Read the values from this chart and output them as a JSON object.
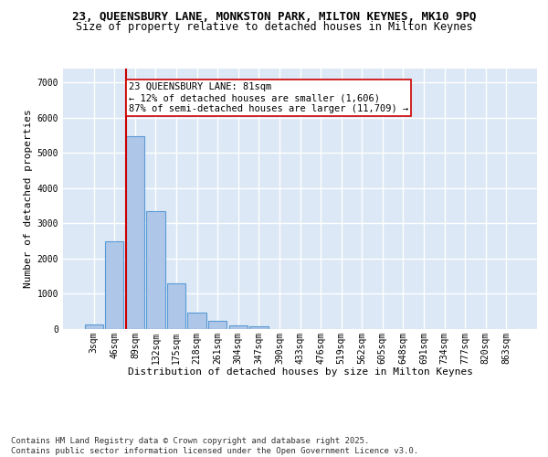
{
  "title1": "23, QUEENSBURY LANE, MONKSTON PARK, MILTON KEYNES, MK10 9PQ",
  "title2": "Size of property relative to detached houses in Milton Keynes",
  "xlabel": "Distribution of detached houses by size in Milton Keynes",
  "ylabel": "Number of detached properties",
  "bin_labels": [
    "3sqm",
    "46sqm",
    "89sqm",
    "132sqm",
    "175sqm",
    "218sqm",
    "261sqm",
    "304sqm",
    "347sqm",
    "390sqm",
    "433sqm",
    "476sqm",
    "519sqm",
    "562sqm",
    "605sqm",
    "648sqm",
    "691sqm",
    "734sqm",
    "777sqm",
    "820sqm",
    "863sqm"
  ],
  "bar_values": [
    120,
    2500,
    5480,
    3350,
    1300,
    460,
    230,
    110,
    65,
    0,
    0,
    0,
    0,
    0,
    0,
    0,
    0,
    0,
    0,
    0,
    0
  ],
  "bar_color": "#aec6e8",
  "bar_edgecolor": "#5a9bd5",
  "bar_linewidth": 0.8,
  "vline_bin": 2,
  "vline_color": "#cc0000",
  "vline_linewidth": 1.5,
  "annotation_text": "23 QUEENSBURY LANE: 81sqm\n← 12% of detached houses are smaller (1,606)\n87% of semi-detached houses are larger (11,709) →",
  "annotation_box_color": "#ffffff",
  "annotation_box_edgecolor": "#cc0000",
  "annotation_fontsize": 7.5,
  "ylim": [
    0,
    7400
  ],
  "yticks": [
    0,
    1000,
    2000,
    3000,
    4000,
    5000,
    6000,
    7000
  ],
  "bg_color": "#dce8f5",
  "grid_color": "#ffffff",
  "title1_fontsize": 9,
  "title2_fontsize": 8.5,
  "ylabel_fontsize": 8,
  "xlabel_fontsize": 8,
  "tick_fontsize": 7,
  "footer_text": "Contains HM Land Registry data © Crown copyright and database right 2025.\nContains public sector information licensed under the Open Government Licence v3.0.",
  "footer_fontsize": 6.5
}
